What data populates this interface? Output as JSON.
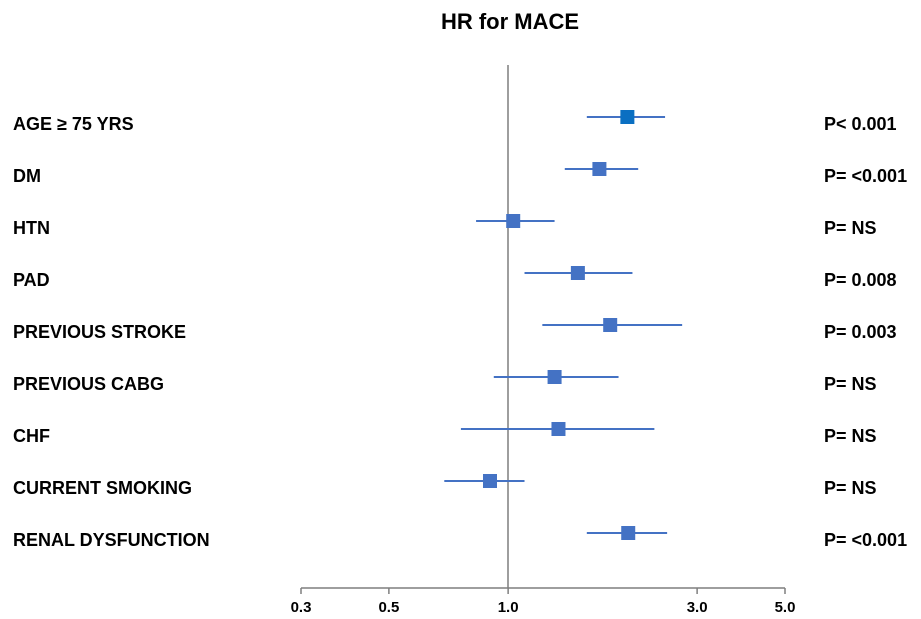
{
  "chart_data": {
    "type": "forest",
    "title": "HR for MACE",
    "categories": [
      "AGE ≥ 75 YRS",
      "DM",
      "HTN",
      "PAD",
      "PREVIOUS STROKE",
      "PREVIOUS CABG",
      "CHF",
      "CURRENT SMOKING",
      "RENAL DYSFUNCTION"
    ],
    "values": [
      2.0,
      1.7,
      1.03,
      1.5,
      1.81,
      1.31,
      1.34,
      0.9,
      2.01
    ],
    "lower": [
      1.58,
      1.39,
      0.83,
      1.1,
      1.22,
      0.92,
      0.76,
      0.69,
      1.58
    ],
    "upper": [
      2.49,
      2.13,
      1.31,
      2.06,
      2.75,
      1.9,
      2.34,
      1.1,
      2.52
    ],
    "p_values": [
      "P< 0.001",
      "P= <0.001",
      "P= NS",
      "P= 0.008",
      "P= 0.003",
      "P= NS",
      "P= NS",
      "P= NS",
      "P= <0.001"
    ],
    "colors": [
      "#0a6fc2",
      "#4472c4",
      "#4472c4",
      "#4472c4",
      "#4472c4",
      "#4472c4",
      "#4472c4",
      "#4472c4",
      "#4472c4"
    ],
    "line_color": "#4472c4",
    "x_log": true,
    "xlim": [
      0.3,
      5.0
    ],
    "xticks": [
      0.3,
      0.5,
      {
        "value": 1.0,
        "label": "1.0"
      },
      {
        "value": 3.0,
        "label": "3.0"
      },
      {
        "value": 5.0,
        "label": "5.0"
      }
    ]
  }
}
